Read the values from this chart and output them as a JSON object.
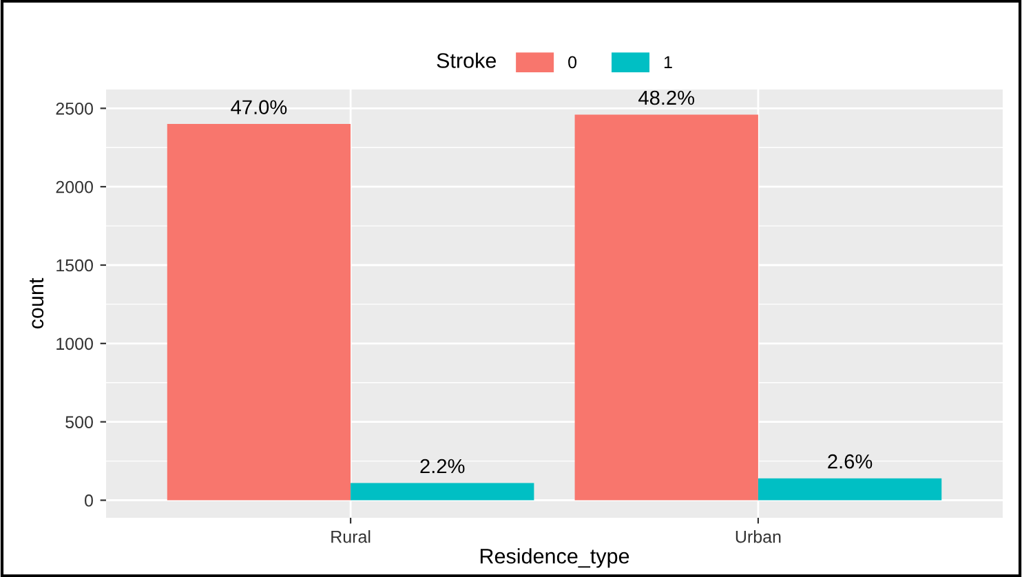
{
  "chart_data": {
    "type": "bar",
    "xlabel": "Residence_type",
    "ylabel": "count",
    "legend_title": "Stroke",
    "categories": [
      "Rural",
      "Urban"
    ],
    "series": [
      {
        "name": "0",
        "color": "#f8766d",
        "values": [
          2400,
          2460
        ]
      },
      {
        "name": "1",
        "color": "#00bfc4",
        "values": [
          110,
          140
        ]
      }
    ],
    "annotations": [
      "47.0%",
      "2.2%",
      "48.2%",
      "2.6%"
    ],
    "ylim": [
      -112,
      2620
    ],
    "yticks": [
      0,
      500,
      1000,
      1500,
      2000,
      2500
    ],
    "grid": true,
    "legend": "top"
  }
}
